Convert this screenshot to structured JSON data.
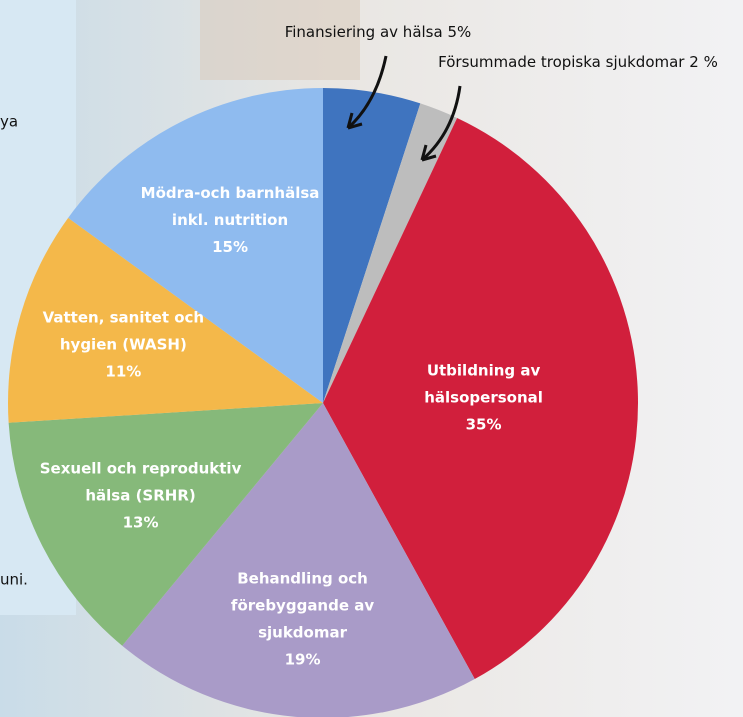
{
  "chart_data": {
    "type": "pie",
    "categories": [
      [
        "Finansiering av hälsa"
      ],
      [
        "Försummade tropiska sjukdomar"
      ],
      [
        "Utbildning av",
        "hälsopersonal"
      ],
      [
        "Behandling och",
        "förebyggande av",
        "sjukdomar"
      ],
      [
        "Sexuell och reproduktiv",
        "hälsa (SRHR)"
      ],
      [
        "Vatten, sanitet och",
        "hygien (WASH)"
      ],
      [
        "Mödra-och barnhälsa",
        "inkl. nutrition"
      ]
    ],
    "values": [
      5,
      2,
      35,
      19,
      13,
      11,
      15
    ],
    "value_labels": [
      "5%",
      "2 %",
      "35%",
      "19%",
      "13%",
      "11%",
      "15%"
    ],
    "colors": [
      "#3f74bf",
      "#bdbdbd",
      "#d11f3c",
      "#a99bc8",
      "#86b97a",
      "#f4b84a",
      "#8fbbef"
    ]
  },
  "background_text": [
    "ya",
    "uni."
  ]
}
